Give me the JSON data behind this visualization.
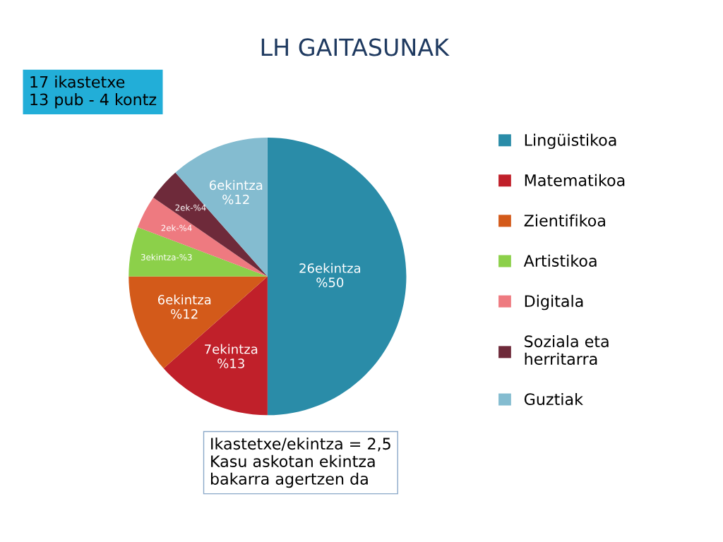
{
  "chart_data": {
    "type": "pie",
    "title": "LH GAITASUNAK",
    "categories": [
      "Lingüistikoa",
      "Matematikoa",
      "Zientifikoa",
      "Artistikoa",
      "Digitala",
      "Soziala eta\nherritarra",
      "Guztiak"
    ],
    "values": [
      26,
      7,
      6,
      3,
      2,
      2,
      6
    ],
    "colors": [
      "#2a8ca8",
      "#c0202a",
      "#d35a1a",
      "#8cd04a",
      "#ee7a80",
      "#6e2a3a",
      "#84bcd0"
    ],
    "value_labels": [
      "26ekintza\n%50",
      "7ekintza\n%13",
      "6ekintza\n%12",
      "3ekintza-%3",
      "2ek-%4",
      "2ek-%4",
      "6ekintza\n%12"
    ],
    "legend": "right",
    "annotations": [
      "17 ikastetxe\n13 pub - 4 kontz",
      "Ikastetxe/ekintza = 2,5\nKasu askotan ekintza\nbakarra agertzen da"
    ]
  }
}
